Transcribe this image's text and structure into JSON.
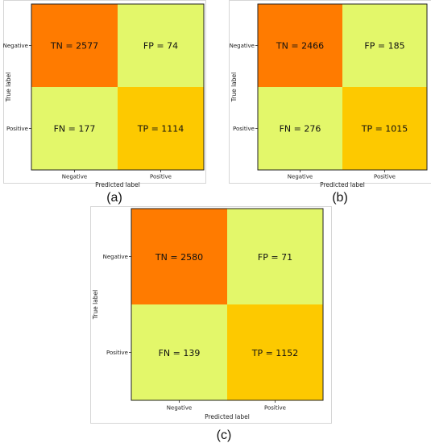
{
  "chart_data": [
    {
      "type": "heatmap",
      "caption": "(a)",
      "xlabel": "Predicted label",
      "ylabel": "True label",
      "x_ticks": [
        "Negative",
        "Positive"
      ],
      "y_ticks": [
        "Negative",
        "Positive"
      ],
      "cells": [
        {
          "label": "TN = 2577",
          "value": 2577,
          "row": 0,
          "col": 0,
          "color": "#ff7b00"
        },
        {
          "label": "FP = 74",
          "value": 74,
          "row": 0,
          "col": 1,
          "color": "#e3f76a"
        },
        {
          "label": "FN = 177",
          "value": 177,
          "row": 1,
          "col": 0,
          "color": "#e3f76a"
        },
        {
          "label": "TP = 1114",
          "value": 1114,
          "row": 1,
          "col": 1,
          "color": "#fdc900"
        }
      ]
    },
    {
      "type": "heatmap",
      "caption": "(b)",
      "xlabel": "Predicted label",
      "ylabel": "True label",
      "x_ticks": [
        "Negative",
        "Positive"
      ],
      "y_ticks": [
        "Negative",
        "Positive"
      ],
      "cells": [
        {
          "label": "TN = 2466",
          "value": 2466,
          "row": 0,
          "col": 0,
          "color": "#ff7b00"
        },
        {
          "label": "FP = 185",
          "value": 185,
          "row": 0,
          "col": 1,
          "color": "#e3f76a"
        },
        {
          "label": "FN = 276",
          "value": 276,
          "row": 1,
          "col": 0,
          "color": "#e3f76a"
        },
        {
          "label": "TP = 1015",
          "value": 1015,
          "row": 1,
          "col": 1,
          "color": "#fdc900"
        }
      ]
    },
    {
      "type": "heatmap",
      "caption": "(c)",
      "xlabel": "Predicted label",
      "ylabel": "True label",
      "x_ticks": [
        "Negative",
        "Positive"
      ],
      "y_ticks": [
        "Negative",
        "Positive"
      ],
      "cells": [
        {
          "label": "TN = 2580",
          "value": 2580,
          "row": 0,
          "col": 0,
          "color": "#ff7b00"
        },
        {
          "label": "FP = 71",
          "value": 71,
          "row": 0,
          "col": 1,
          "color": "#e3f76a"
        },
        {
          "label": "FN = 139",
          "value": 139,
          "row": 1,
          "col": 0,
          "color": "#e3f76a"
        },
        {
          "label": "TP = 1152",
          "value": 1152,
          "row": 1,
          "col": 1,
          "color": "#fdc900"
        }
      ]
    }
  ]
}
